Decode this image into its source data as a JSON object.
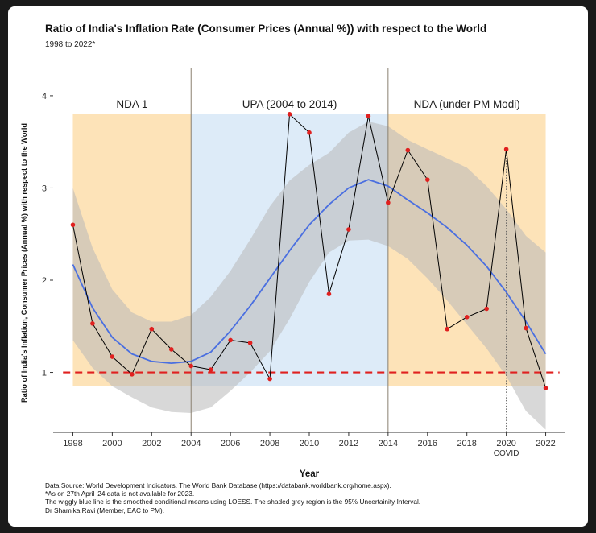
{
  "chart_data": {
    "type": "line",
    "title": "Ratio of India's Inflation Rate (Consumer Prices (Annual %)) with respect to the World",
    "subtitle": "1998 to 2022*",
    "xlabel": "Year",
    "ylabel": "Ratio of India's Inflation, Consumer Prices (Annual %) with respect to the World",
    "xlim": [
      1997,
      2023
    ],
    "ylim": [
      0.35,
      4.2
    ],
    "x_ticks": [
      1998,
      2000,
      2002,
      2004,
      2006,
      2008,
      2010,
      2012,
      2014,
      2016,
      2018,
      2020,
      2022
    ],
    "y_ticks": [
      1,
      2,
      3,
      4
    ],
    "grid": false,
    "series": [
      {
        "x": [
          1998,
          1999,
          2000,
          2001,
          2002,
          2003,
          2004,
          2005,
          2006,
          2007,
          2008,
          2009,
          2010,
          2011,
          2012,
          2013,
          2014,
          2015,
          2016,
          2017,
          2018,
          2019,
          2020,
          2021,
          2022
        ],
        "values": [
          2.6,
          1.53,
          1.17,
          0.98,
          1.47,
          1.25,
          1.07,
          1.03,
          1.35,
          1.32,
          0.93,
          3.8,
          3.6,
          1.85,
          2.55,
          3.78,
          2.84,
          3.41,
          3.09,
          1.47,
          1.6,
          1.69,
          3.42,
          1.48,
          0.83
        ],
        "color": "#000000",
        "point_color": "#e0201f"
      },
      {
        "x": [
          1998,
          1999,
          2000,
          2001,
          2002,
          2003,
          2004,
          2005,
          2006,
          2007,
          2008,
          2009,
          2010,
          2011,
          2012,
          2013,
          2014,
          2015,
          2016,
          2017,
          2018,
          2019,
          2020,
          2021,
          2022
        ],
        "values": [
          2.17,
          1.7,
          1.38,
          1.2,
          1.12,
          1.1,
          1.12,
          1.22,
          1.45,
          1.72,
          2.02,
          2.32,
          2.6,
          2.82,
          3.0,
          3.09,
          3.02,
          2.87,
          2.73,
          2.57,
          2.38,
          2.15,
          1.87,
          1.55,
          1.2
        ],
        "color": "#4a6fe0",
        "band_lower": [
          1.35,
          1.05,
          0.85,
          0.73,
          0.62,
          0.57,
          0.56,
          0.62,
          0.8,
          1.0,
          1.23,
          1.58,
          1.98,
          2.3,
          2.43,
          2.44,
          2.37,
          2.23,
          2.02,
          1.78,
          1.52,
          1.26,
          0.96,
          0.58,
          0.38
        ],
        "band_upper": [
          3.0,
          2.35,
          1.9,
          1.65,
          1.55,
          1.55,
          1.62,
          1.82,
          2.1,
          2.44,
          2.8,
          3.08,
          3.25,
          3.38,
          3.6,
          3.72,
          3.67,
          3.52,
          3.42,
          3.32,
          3.22,
          3.02,
          2.77,
          2.48,
          2.3
        ],
        "band_color": "#b8b8b8"
      }
    ],
    "reference_line": {
      "y": 1,
      "color": "#e0201f",
      "style": "dashed"
    },
    "periods": [
      {
        "label": "NDA 1",
        "start": 1998,
        "end": 2004,
        "color": "#fde3b8",
        "top": 3.8,
        "bottom": 0.85
      },
      {
        "label": "UPA (2004 to 2014)",
        "start": 2004,
        "end": 2014,
        "color": "#ddebf8",
        "top": 3.8,
        "bottom": 0.85
      },
      {
        "label": "NDA (under PM Modi)",
        "start": 2014,
        "end": 2022,
        "color": "#fde3b8",
        "top": 3.8,
        "bottom": 0.85
      }
    ],
    "divider_years": [
      2004,
      2014
    ],
    "covid_marker": {
      "year": 2020,
      "label": "COVID"
    }
  },
  "notes": [
    "Data Source: World Development Indicators. The World Bank Database (https://databank.worldbank.org/home.aspx).",
    "*As on 27th April '24 data is not available for 2023.",
    "The wiggly blue line is the smoothed conditional means using LOESS. The shaded grey region is the 95% Uncertainity Interval.",
    "Dr Shamika Ravi (Member, EAC to PM)."
  ]
}
